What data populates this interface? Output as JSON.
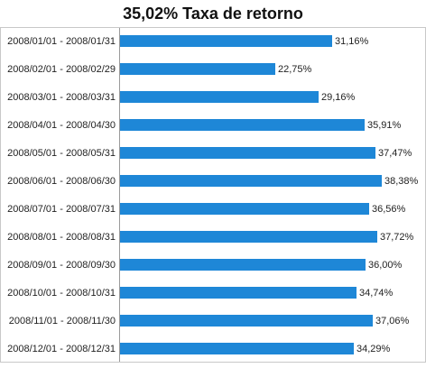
{
  "chart_data": {
    "type": "bar",
    "orientation": "horizontal",
    "title": "35,02% Taxa de retorno",
    "categories": [
      "2008/01/01 - 2008/01/31",
      "2008/02/01 - 2008/02/29",
      "2008/03/01 - 2008/03/31",
      "2008/04/01 - 2008/04/30",
      "2008/05/01 - 2008/05/31",
      "2008/06/01 - 2008/06/30",
      "2008/07/01 - 2008/07/31",
      "2008/08/01 - 2008/08/31",
      "2008/09/01 - 2008/09/30",
      "2008/10/01 - 2008/10/31",
      "2008/11/01 - 2008/11/30",
      "2008/12/01 - 2008/12/31"
    ],
    "values": [
      31.16,
      22.75,
      29.16,
      35.91,
      37.47,
      38.38,
      36.56,
      37.72,
      36.0,
      34.74,
      37.06,
      34.29
    ],
    "value_labels": [
      "31,16%",
      "22,75%",
      "29,16%",
      "35,91%",
      "37,47%",
      "38,38%",
      "36,56%",
      "37,72%",
      "36,00%",
      "34,74%",
      "37,06%",
      "34,29%"
    ],
    "xlim": [
      0,
      45
    ],
    "grid": false,
    "legend": "none",
    "bar_color": "#1e87d7"
  }
}
